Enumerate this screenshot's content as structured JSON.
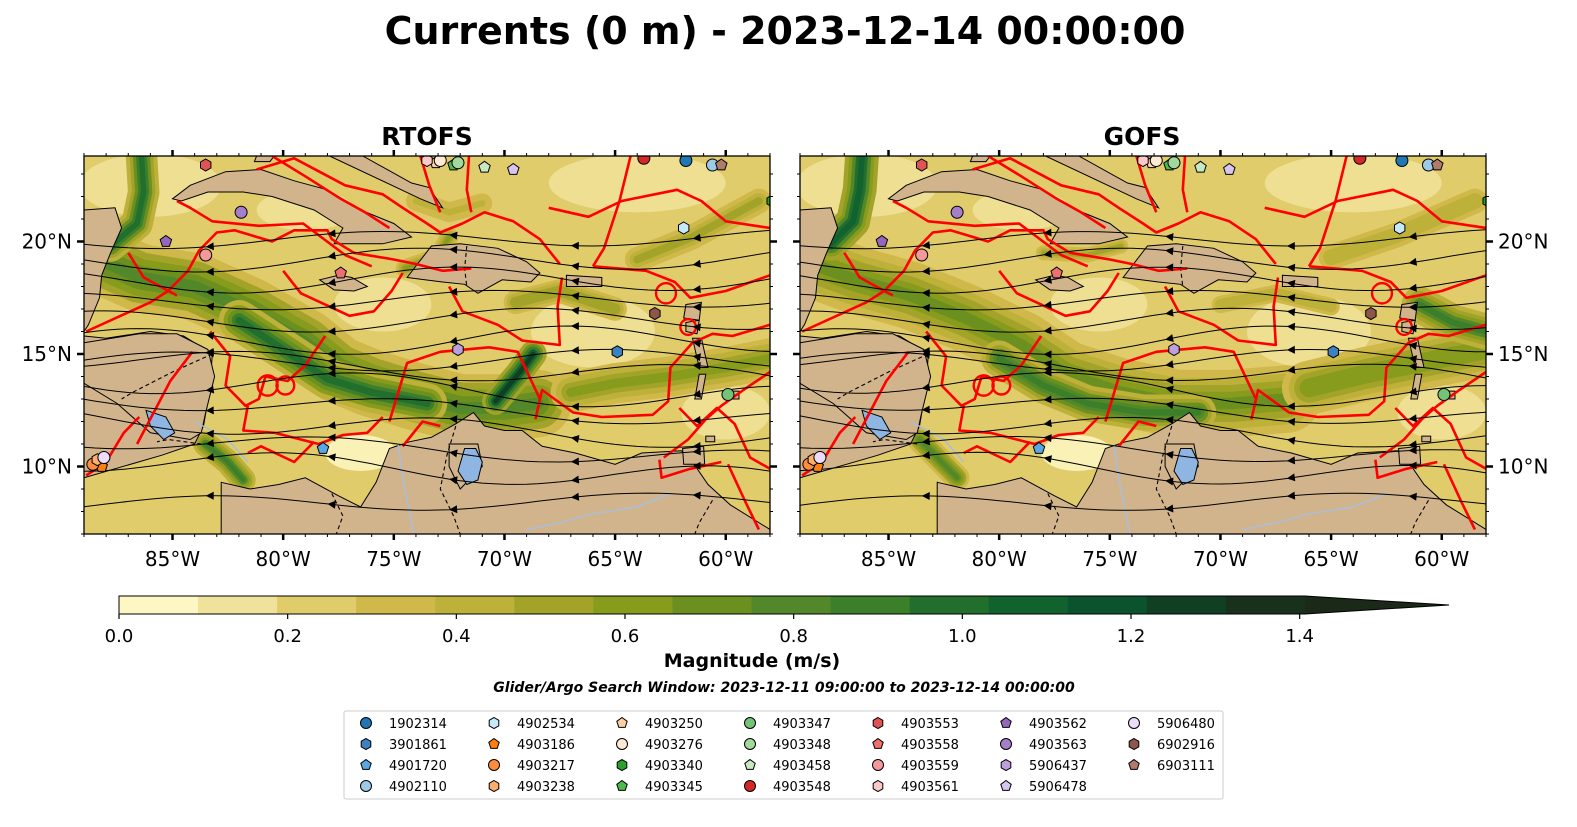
{
  "title": "Currents (0 m) - 2023-12-14 00:00:00",
  "subtitle": "Glider/Argo Search Window: 2023-12-11 09:00:00 to 2023-12-14 00:00:00",
  "colors": {
    "land": "#d2b48c",
    "boundary": "#ff0000",
    "lake": "#8fb5e3",
    "river": "#a9bfd9"
  },
  "chart_data": {
    "type": "heatmap",
    "panels": [
      {
        "id": "rtofs",
        "title": "RTOFS"
      },
      {
        "id": "gofs",
        "title": "GOFS"
      }
    ],
    "xlim": [
      -89,
      -58
    ],
    "ylim": [
      7,
      23.8
    ],
    "xticks": [
      -85,
      -80,
      -75,
      -70,
      -65,
      -60
    ],
    "xtick_labels": [
      "85°W",
      "80°W",
      "75°W",
      "70°W",
      "65°W",
      "60°W"
    ],
    "yticks": [
      10,
      15,
      20
    ],
    "ytick_labels": [
      "10°N",
      "15°N",
      "20°N"
    ],
    "colorbar": {
      "label": "Magnitude (m/s)",
      "min": 0,
      "max": 1.5,
      "step": 0.1,
      "extend": "max",
      "ticks": [
        0.0,
        0.2,
        0.4,
        0.6,
        0.8,
        1.0,
        1.2,
        1.4
      ],
      "tick_labels": [
        "0.0",
        "0.2",
        "0.4",
        "0.6",
        "0.8",
        "1.0",
        "1.2",
        "1.4"
      ],
      "colors": [
        "#fdf7c3",
        "#f0e29a",
        "#e1cc6c",
        "#d0b94a",
        "#bdb13a",
        "#a3a32a",
        "#879c1c",
        "#6b9020",
        "#53882a",
        "#3c7f2a",
        "#226f2d",
        "#12622f",
        "#0b532c",
        "#103f24",
        "#18301c",
        "#1b2a18"
      ]
    },
    "platforms": [
      {
        "id": "1902314",
        "color": "#1f77b4",
        "marker": "circle",
        "lon": -61.8,
        "lat": 23.6
      },
      {
        "id": "3901861",
        "color": "#3c82c2",
        "marker": "hexagon",
        "lon": -64.9,
        "lat": 15.1
      },
      {
        "id": "4901720",
        "color": "#5aa7e6",
        "marker": "pentagon",
        "lon": -78.2,
        "lat": 10.8
      },
      {
        "id": "4902110",
        "color": "#9ecae9",
        "marker": "circle",
        "lon": -60.6,
        "lat": 23.4
      },
      {
        "id": "4902534",
        "color": "#c6e9fa",
        "marker": "hexagon",
        "lon": -61.9,
        "lat": 20.6
      },
      {
        "id": "4903186",
        "color": "#ff7f0e",
        "marker": "pentagon",
        "lon": -88.2,
        "lat": 10.0
      },
      {
        "id": "4903217",
        "color": "#fd8d3c",
        "marker": "circle",
        "lon": -88.6,
        "lat": 10.1
      },
      {
        "id": "4903238",
        "color": "#fdae6b",
        "marker": "hexagon",
        "lon": -88.4,
        "lat": 10.3
      },
      {
        "id": "4903250",
        "color": "#fdd0a2",
        "marker": "pentagon",
        "lon": -73.1,
        "lat": 23.5
      },
      {
        "id": "4903276",
        "color": "#feead2",
        "marker": "circle",
        "lon": -72.9,
        "lat": 23.6
      },
      {
        "id": "4903340",
        "color": "#2ca02c",
        "marker": "hexagon",
        "lon": -57.9,
        "lat": 21.8
      },
      {
        "id": "4903345",
        "color": "#4cbb4c",
        "marker": "pentagon",
        "lon": -72.3,
        "lat": 23.4
      },
      {
        "id": "4903347",
        "color": "#74c476",
        "marker": "circle",
        "lon": -59.9,
        "lat": 13.2
      },
      {
        "id": "4903348",
        "color": "#a1d99b",
        "marker": "circle",
        "lon": -72.1,
        "lat": 23.5
      },
      {
        "id": "4903458",
        "color": "#c7e9c0",
        "marker": "pentagon",
        "lon": -70.9,
        "lat": 23.3
      },
      {
        "id": "4903548",
        "color": "#d62728",
        "marker": "circle",
        "lon": -63.7,
        "lat": 23.7
      },
      {
        "id": "4903553",
        "color": "#e05353",
        "marker": "hexagon",
        "lon": -83.5,
        "lat": 23.4
      },
      {
        "id": "4903558",
        "color": "#ee6f6f",
        "marker": "pentagon",
        "lon": -77.4,
        "lat": 18.6
      },
      {
        "id": "4903559",
        "color": "#f4999a",
        "marker": "circle",
        "lon": -83.5,
        "lat": 19.4
      },
      {
        "id": "4903561",
        "color": "#fbc9c8",
        "marker": "hexagon",
        "lon": -73.5,
        "lat": 23.6
      },
      {
        "id": "4903562",
        "color": "#9467bd",
        "marker": "pentagon",
        "lon": -85.3,
        "lat": 20.0
      },
      {
        "id": "4903563",
        "color": "#a57fc9",
        "marker": "circle",
        "lon": -81.9,
        "lat": 21.3
      },
      {
        "id": "5906437",
        "color": "#bca0dc",
        "marker": "hexagon",
        "lon": -72.1,
        "lat": 15.2
      },
      {
        "id": "5906478",
        "color": "#d9c4f0",
        "marker": "pentagon",
        "lon": -69.6,
        "lat": 23.2
      },
      {
        "id": "5906480",
        "color": "#ecdcfa",
        "marker": "circle",
        "lon": -88.1,
        "lat": 10.4
      },
      {
        "id": "6902916",
        "color": "#8c564b",
        "marker": "hexagon",
        "lon": -63.2,
        "lat": 16.8
      },
      {
        "id": "6903111",
        "color": "#b07a6c",
        "marker": "pentagon",
        "lon": -60.2,
        "lat": 23.4
      }
    ]
  }
}
